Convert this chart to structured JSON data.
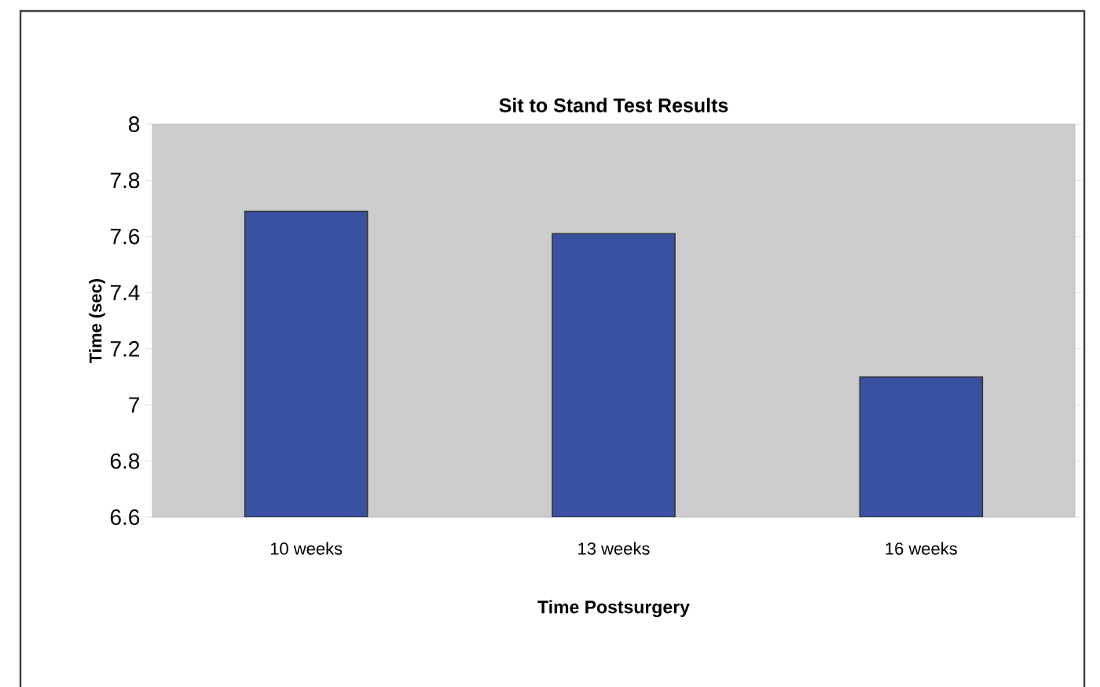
{
  "chart_data": {
    "type": "bar",
    "title": "Sit to Stand Test Results",
    "xlabel": "Time Postsurgery",
    "ylabel": "Time (sec)",
    "categories": [
      "10 weeks",
      "13 weeks",
      "16 weeks"
    ],
    "values": [
      7.69,
      7.61,
      7.1
    ],
    "color": "#3a50a0",
    "ylim": [
      6.6,
      8
    ],
    "yticks": [
      6.6,
      6.8,
      7,
      7.2,
      7.4,
      7.6,
      7.8,
      8
    ]
  }
}
